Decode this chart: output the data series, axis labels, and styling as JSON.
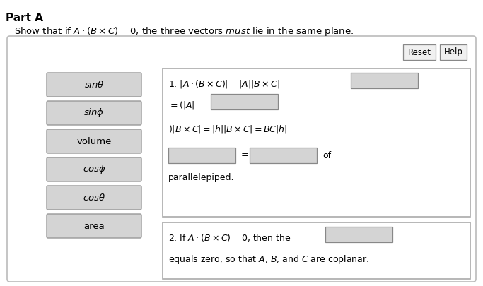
{
  "title": "Part A",
  "subtitle": "Show that if $A \\cdot (B \\times C) = 0$, the three vectors must lie in the same plane.",
  "bg_color": "#ffffff",
  "panel_bg": "#f8f8f8",
  "panel_border": "#cccccc",
  "button_bg": "#d8d8d8",
  "button_border": "#999999",
  "box_bg": "#d8d8d8",
  "box_border": "#aaaaaa",
  "left_buttons": [
    "$sin\\theta$",
    "$sin\\phi$",
    "volume",
    "$cos\\phi$",
    "$cos\\theta$",
    "area"
  ],
  "line1_text": "1. $|A \\cdot (B \\times C)| = |A||B \\times C|$",
  "line2_text": "$= (|A|$",
  "line3_text": "$)|B \\times C| = |h||B \\times C| = BC|h|$",
  "line4_of": "of",
  "line5_text": "parallelepiped.",
  "line6_text": "2. If $A \\cdot (B \\times C) = 0$, then the",
  "line7_text": "equals zero, so that $A$, $B$, and $C$ are coplanar.",
  "reset_label": "Reset",
  "help_label": "Help"
}
